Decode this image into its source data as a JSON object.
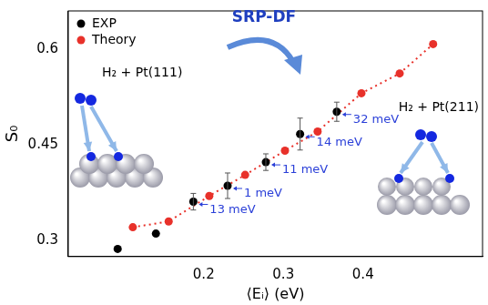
{
  "chart_data": {
    "type": "scatter",
    "x_label": "⟨Eᵢ⟩ (eV)",
    "y_label": "S₀",
    "xlim": [
      0.03,
      0.55
    ],
    "ylim": [
      0.275,
      0.66
    ],
    "xticks": [
      0.2,
      0.3,
      0.4
    ],
    "yticks": [
      0.3,
      0.45,
      0.6
    ],
    "grid": false,
    "legend": "upper left",
    "series": [
      {
        "name": "EXP",
        "color": "#000000",
        "marker": "circle",
        "x": [
          0.092,
          0.14,
          0.187,
          0.23,
          0.278,
          0.321,
          0.367
        ],
        "values": [
          0.287,
          0.311,
          0.361,
          0.386,
          0.423,
          0.467,
          0.502
        ],
        "errors": [
          null,
          null,
          0.013,
          0.02,
          0.013,
          0.025,
          0.015
        ],
        "point_labels": [
          null,
          null,
          "13 meV",
          "1 meV",
          "11 meV",
          "14 meV",
          "32 meV"
        ]
      },
      {
        "name": "Theory",
        "color": "#e8312a",
        "marker": "circle",
        "line_style": "dotted",
        "x": [
          0.111,
          0.156,
          0.207,
          0.252,
          0.302,
          0.343,
          0.398,
          0.446,
          0.488
        ],
        "values": [
          0.321,
          0.33,
          0.37,
          0.403,
          0.441,
          0.471,
          0.531,
          0.562,
          0.608
        ]
      }
    ],
    "annotations": [
      "SRP-DF",
      "H₂ + Pt(111)",
      "H₂ + Pt(211)"
    ]
  }
}
